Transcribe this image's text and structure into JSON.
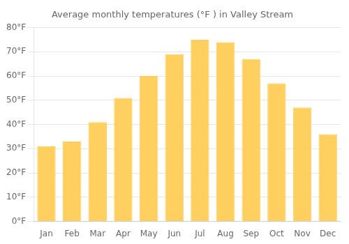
{
  "chart_data": {
    "type": "bar",
    "title": "Average monthly temperatures (°F ) in Valley Stream",
    "categories": [
      "Jan",
      "Feb",
      "Mar",
      "Apr",
      "May",
      "Jun",
      "Jul",
      "Aug",
      "Sep",
      "Oct",
      "Nov",
      "Dec"
    ],
    "values": [
      31,
      33,
      41,
      51,
      60,
      69,
      75,
      74,
      67,
      57,
      47,
      36
    ],
    "color": "#FFD060",
    "ylim": [
      0,
      80
    ],
    "yticks": [
      {
        "value": 0,
        "label": "0°F"
      },
      {
        "value": 10,
        "label": "10°F"
      },
      {
        "value": 20,
        "label": "20°F"
      },
      {
        "value": 30,
        "label": "30°F"
      },
      {
        "value": 40,
        "label": "40°F"
      },
      {
        "value": 50,
        "label": "50°F"
      },
      {
        "value": 60,
        "label": "60°F"
      },
      {
        "value": 70,
        "label": "70°F"
      },
      {
        "value": 80,
        "label": "80°F"
      }
    ],
    "grid": true
  }
}
